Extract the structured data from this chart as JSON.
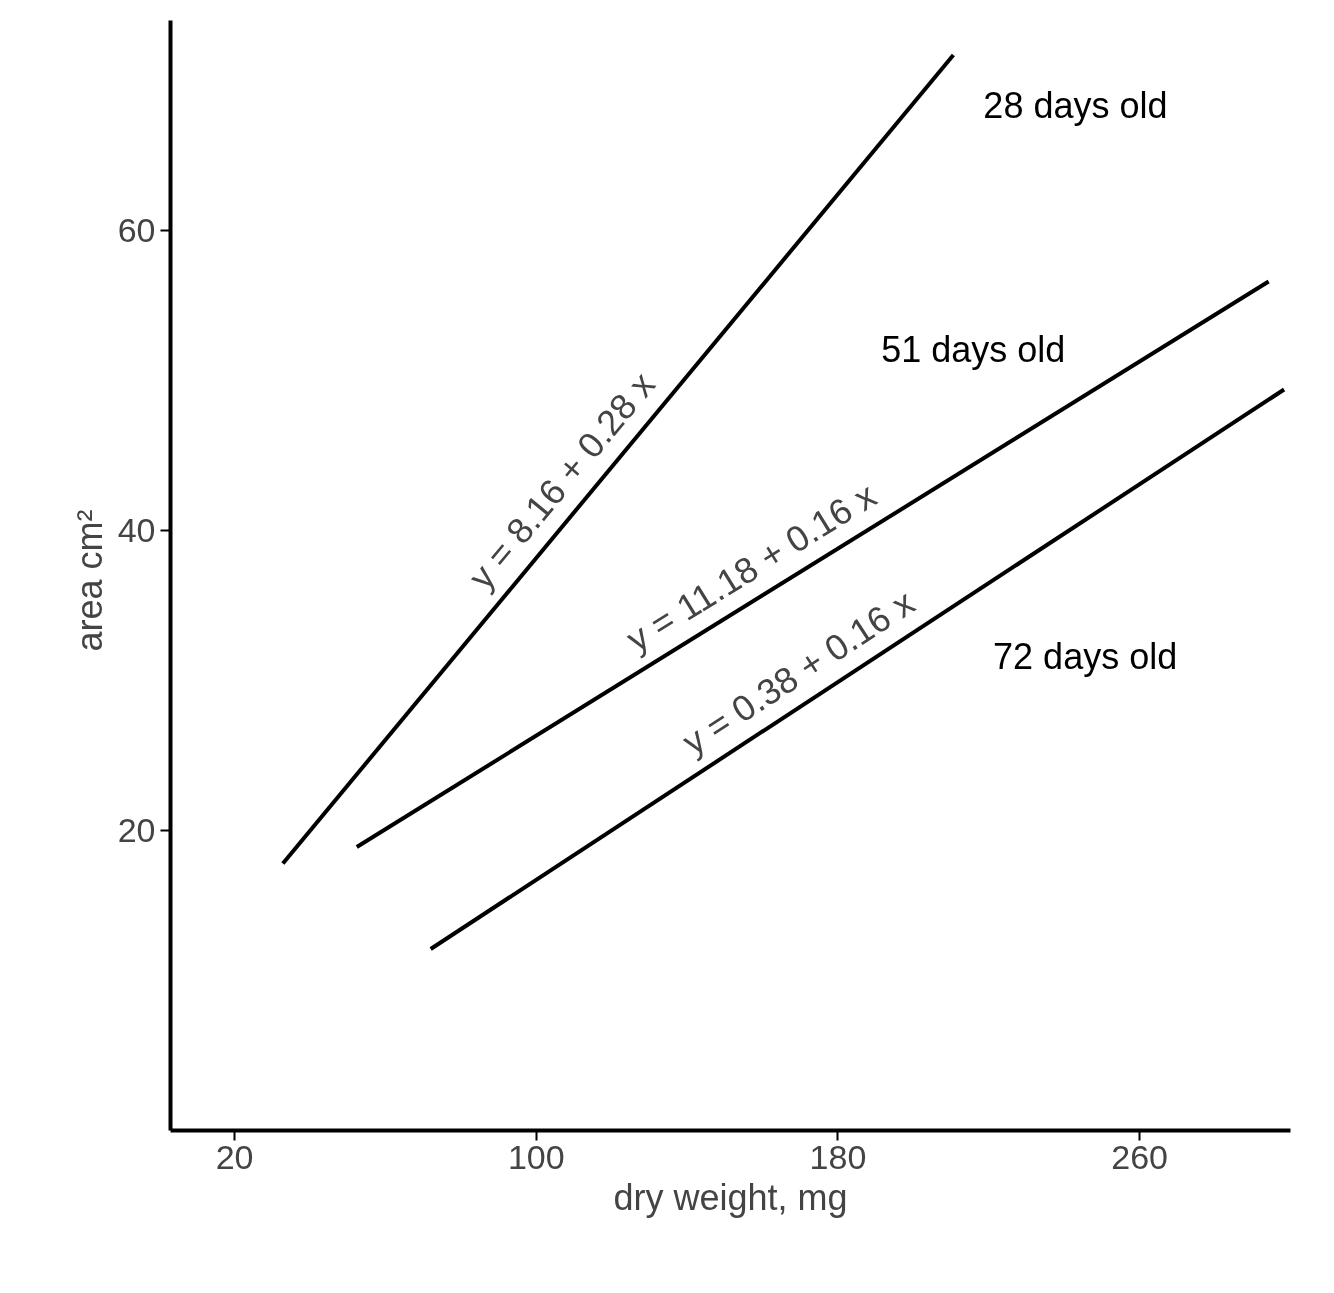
{
  "chart_data": {
    "type": "line",
    "xlabel": "dry weight, mg",
    "ylabel": "area  cm²",
    "xlim": [
      3,
      300
    ],
    "ylim": [
      0,
      74
    ],
    "xticks": [
      20,
      100,
      180,
      260
    ],
    "yticks": [
      20,
      40,
      60
    ],
    "grid": false,
    "line_style": "solid",
    "marker": "none",
    "series": [
      {
        "name": "28  days old",
        "color": "#000000",
        "x": [
          32.8,
          210.6
        ],
        "values": [
          17.8,
          71.7
        ]
      },
      {
        "name": "51 days old",
        "color": "#000000",
        "x": [
          52.4,
          294.2
        ],
        "values": [
          18.9,
          56.6
        ]
      },
      {
        "name": "72 days old",
        "color": "#000000",
        "x": [
          72.0,
          298.3
        ],
        "values": [
          12.1,
          49.4
        ]
      }
    ],
    "annotations": [
      "y = 8.16 + 0.28 x",
      "y = 11.18 + 0.16 x",
      "y = 0.38 + 0.16 x"
    ]
  }
}
